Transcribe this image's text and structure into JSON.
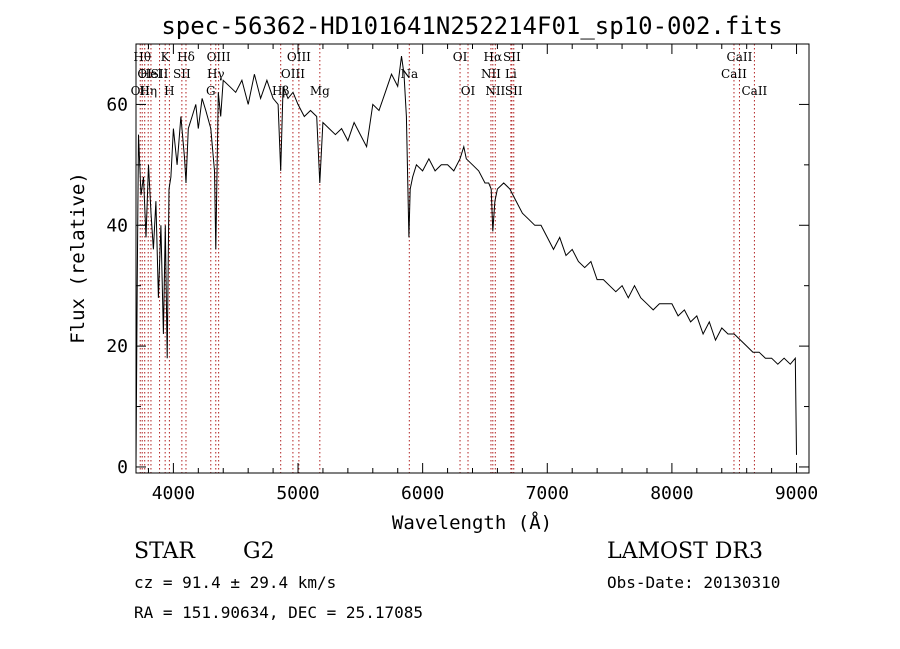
{
  "chart_data": {
    "type": "line",
    "title": "spec-56362-HD101641N252214F01_sp10-002.fits",
    "xlabel": "Wavelength (Å)",
    "ylabel": "Flux (relative)",
    "xlim": [
      3700,
      9100
    ],
    "ylim": [
      -1,
      70
    ],
    "xticks": [
      4000,
      5000,
      6000,
      7000,
      8000,
      9000
    ],
    "yticks": [
      0,
      20,
      40,
      60
    ],
    "grid": false,
    "line_color": "#000000",
    "marker_color": "#b22222",
    "series": [
      {
        "x": [
          3700,
          3710,
          3720,
          3740,
          3760,
          3780,
          3800,
          3820,
          3840,
          3860,
          3880,
          3900,
          3920,
          3935,
          3950,
          3965,
          3980,
          4000,
          4030,
          4060,
          4090,
          4101,
          4120,
          4150,
          4180,
          4200,
          4230,
          4260,
          4300,
          4330,
          4340,
          4360,
          4380,
          4400,
          4450,
          4500,
          4550,
          4600,
          4650,
          4700,
          4750,
          4800,
          4840,
          4861,
          4880,
          4920,
          4960,
          5000,
          5050,
          5100,
          5150,
          5175,
          5200,
          5250,
          5300,
          5350,
          5400,
          5450,
          5500,
          5550,
          5600,
          5650,
          5700,
          5750,
          5800,
          5830,
          5850,
          5870,
          5890,
          5900,
          5920,
          5950,
          6000,
          6050,
          6100,
          6150,
          6200,
          6250,
          6300,
          6330,
          6350,
          6400,
          6450,
          6500,
          6530,
          6550,
          6563,
          6580,
          6600,
          6650,
          6700,
          6750,
          6800,
          6850,
          6900,
          6950,
          7000,
          7050,
          7100,
          7150,
          7200,
          7250,
          7300,
          7350,
          7400,
          7450,
          7500,
          7550,
          7600,
          7650,
          7700,
          7750,
          7800,
          7850,
          7900,
          7950,
          8000,
          8050,
          8100,
          8150,
          8200,
          8250,
          8300,
          8350,
          8400,
          8450,
          8500,
          8550,
          8600,
          8650,
          8700,
          8750,
          8800,
          8850,
          8900,
          8950,
          8990,
          9000
        ],
        "y": [
          0,
          30,
          55,
          45,
          48,
          38,
          50,
          42,
          36,
          44,
          28,
          40,
          22,
          40,
          18,
          46,
          48,
          56,
          50,
          58,
          51,
          47,
          56,
          58,
          60,
          56,
          61,
          59,
          56,
          49,
          36,
          62,
          58,
          64,
          63,
          62,
          64,
          60,
          65,
          61,
          64,
          61,
          60,
          49,
          63,
          61,
          62,
          60,
          58,
          59,
          58,
          47,
          57,
          56,
          55,
          56,
          54,
          57,
          55,
          53,
          60,
          59,
          62,
          65,
          63,
          68,
          65,
          58,
          38,
          46,
          48,
          50,
          49,
          51,
          49,
          50,
          50,
          49,
          51,
          53,
          51,
          50,
          49,
          47,
          47,
          46,
          39,
          44,
          46,
          47,
          46,
          44,
          42,
          41,
          40,
          40,
          38,
          36,
          38,
          35,
          36,
          34,
          33,
          34,
          31,
          31,
          30,
          29,
          30,
          28,
          30,
          28,
          27,
          26,
          27,
          27,
          27,
          25,
          26,
          24,
          25,
          22,
          24,
          21,
          23,
          22,
          22,
          21,
          20,
          19,
          19,
          18,
          18,
          17,
          18,
          17,
          18,
          2
        ]
      }
    ],
    "lines": [
      {
        "x": 3734,
        "label": "OII",
        "row": 3
      },
      {
        "x": 3750,
        "label": "Hθ",
        "row": 1
      },
      {
        "x": 3770,
        "label": "OI",
        "row": 2
      },
      {
        "x": 3798,
        "label": "Hη",
        "row": 3
      },
      {
        "x": 3820,
        "label": "HeI",
        "row": 2
      },
      {
        "x": 3889,
        "label": "SII",
        "row": 2
      },
      {
        "x": 3934,
        "label": "K",
        "row": 1
      },
      {
        "x": 3968,
        "label": "H",
        "row": 3
      },
      {
        "x": 4101,
        "label": "Hδ",
        "row": 1
      },
      {
        "x": 4068,
        "label": "SII",
        "row": 2
      },
      {
        "x": 4300,
        "label": "G",
        "row": 3
      },
      {
        "x": 4340,
        "label": "Hγ",
        "row": 2
      },
      {
        "x": 4363,
        "label": "OIII",
        "row": 1
      },
      {
        "x": 4861,
        "label": "Hβ",
        "row": 3
      },
      {
        "x": 4959,
        "label": "OIII",
        "row": 2
      },
      {
        "x": 5007,
        "label": "OIII",
        "row": 1
      },
      {
        "x": 5175,
        "label": "Mg",
        "row": 3
      },
      {
        "x": 5893,
        "label": "Na",
        "row": 2
      },
      {
        "x": 6300,
        "label": "OI",
        "row": 1
      },
      {
        "x": 6364,
        "label": "OI",
        "row": 3
      },
      {
        "x": 6548,
        "label": "NII",
        "row": 2
      },
      {
        "x": 6563,
        "label": "Hα",
        "row": 1
      },
      {
        "x": 6583,
        "label": "NII",
        "row": 3
      },
      {
        "x": 6708,
        "label": "Li",
        "row": 2
      },
      {
        "x": 6716,
        "label": "SII",
        "row": 1
      },
      {
        "x": 6731,
        "label": "SII",
        "row": 3
      },
      {
        "x": 8498,
        "label": "CaII",
        "row": 2
      },
      {
        "x": 8542,
        "label": "CaII",
        "row": 1
      },
      {
        "x": 8662,
        "label": "CaII",
        "row": 3
      }
    ]
  },
  "info": {
    "class": "STAR",
    "subclass": "G2",
    "survey": "LAMOST DR3",
    "cz": "cz = 91.4 ± 29.4 km/s",
    "obs_date": "Obs-Date: 20130310",
    "coords": "RA = 151.90634, DEC =  25.17085"
  }
}
